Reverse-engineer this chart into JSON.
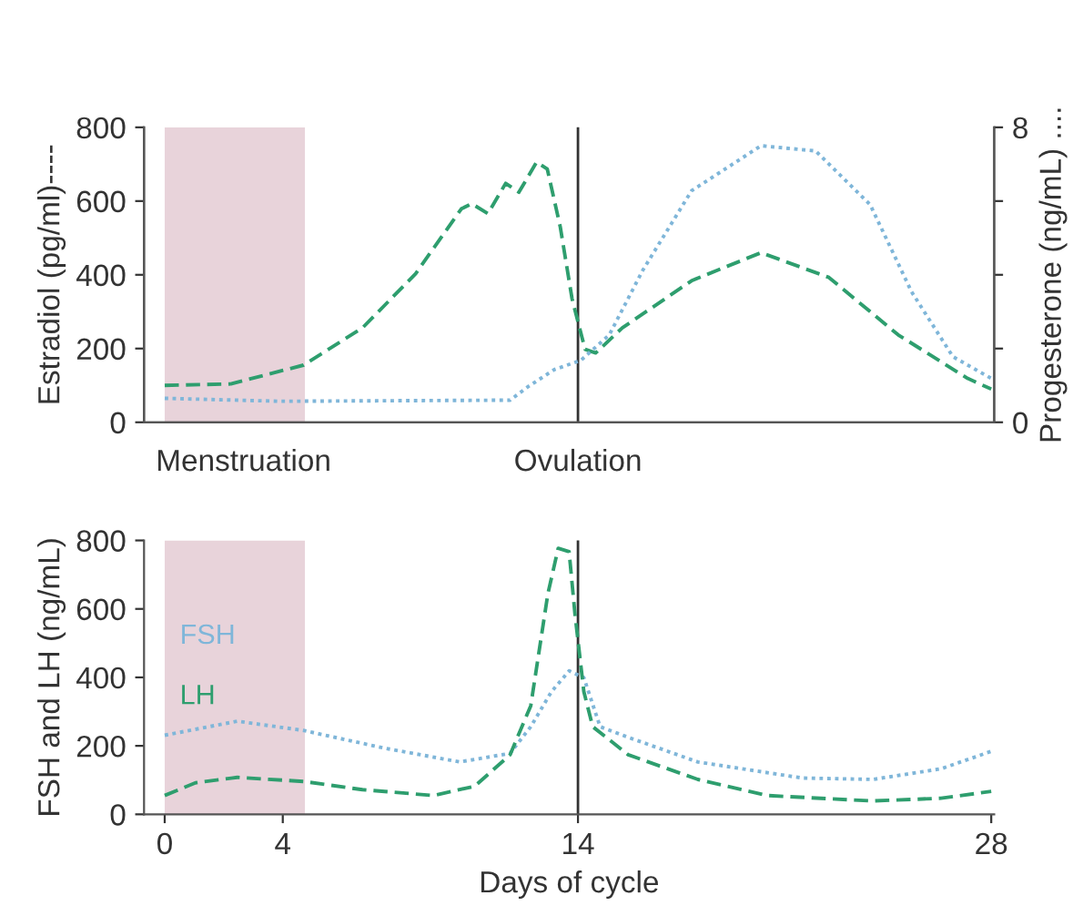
{
  "chart_data": [
    {
      "type": "line",
      "ylabel": "Estradiol (pg/ml)----",
      "y2label": "Progesterone (ng/mL) ....",
      "xlim": [
        -0.7,
        28.1
      ],
      "xticks": [
        0,
        4,
        14,
        28
      ],
      "ylim": [
        0,
        800
      ],
      "yticks": [
        0,
        200,
        400,
        600,
        800
      ],
      "y2lim": [
        0,
        8
      ],
      "y2ticks": [
        0,
        {
          "value": 2,
          "label": null
        },
        {
          "value": 4,
          "label": null
        },
        {
          "value": 6,
          "label": null
        },
        8
      ],
      "tick_labels": "y",
      "grid": false,
      "legend": false,
      "series": [
        {
          "color": "#2e9e6e",
          "line_style": "dashed",
          "x": [
            0,
            2.24,
            4.7,
            6.7,
            8.5,
            10.05,
            10.4,
            10.95,
            11.55,
            12.0,
            12.6,
            12.96,
            13.4,
            13.8,
            14.24,
            14.6,
            15.5,
            17.85,
            20.2,
            22.5,
            24.85,
            27.2,
            28
          ],
          "values": [
            100,
            104,
            155,
            256,
            403,
            579,
            593,
            566,
            648,
            624,
            706,
            687,
            530,
            335,
            198,
            188,
            256,
            384,
            460,
            393,
            237,
            119,
            90
          ]
        },
        {
          "color": "#7fb6d9",
          "line_style": "dotted",
          "axis": "y2",
          "x": [
            0,
            3.9,
            11.7,
            12.3,
            13.2,
            14.1,
            15.06,
            16.2,
            17.85,
            20.2,
            22.05,
            23.9,
            25.3,
            26.7,
            28
          ],
          "values": [
            0.65,
            0.57,
            0.6,
            0.96,
            1.43,
            1.68,
            2.37,
            4.13,
            6.28,
            7.5,
            7.36,
            5.9,
            3.54,
            1.78,
            1.19
          ]
        }
      ],
      "bands": [
        {
          "axis": "x",
          "from": 0,
          "to": 4.75,
          "label": "Menstruation",
          "color": "#e8d3da"
        }
      ],
      "ref_lines": [
        {
          "axis": "x",
          "value": 14,
          "label": "Ovulation",
          "color": "#333333"
        }
      ]
    },
    {
      "type": "line",
      "xlabel": "Days of cycle",
      "ylabel": "FSH and LH (ng/mL)",
      "xlim": [
        -0.7,
        28.1
      ],
      "xticks": [
        0,
        4,
        14,
        28
      ],
      "ylim": [
        0,
        800
      ],
      "yticks": [
        0,
        200,
        400,
        600,
        800
      ],
      "grid": false,
      "legend": false,
      "series": [
        {
          "name": "FSH",
          "color": "#7fb6d9",
          "line_style": "dotted",
          "x": [
            0,
            2.46,
            4.7,
            7.4,
            10.0,
            11.7,
            12.4,
            13.1,
            13.7,
            14.2,
            14.75,
            15.7,
            18.06,
            21.6,
            24,
            26.3,
            28
          ],
          "values": [
            231,
            272,
            245,
            194,
            153,
            178,
            256,
            358,
            419,
            399,
            256,
            225,
            153,
            106,
            102,
            133,
            184
          ]
        },
        {
          "name": "LH",
          "color": "#2e9e6e",
          "line_style": "dashed",
          "x": [
            0,
            1.04,
            2.46,
            4.7,
            6.7,
            9.1,
            10.5,
            11.7,
            12.4,
            12.98,
            13.33,
            13.7,
            13.9,
            14.2,
            14.5,
            15.7,
            18.06,
            20.4,
            23.97,
            26.3,
            28
          ],
          "values": [
            55,
            92,
            108,
            96,
            72,
            55,
            82,
            174,
            317,
            644,
            777,
            767,
            583,
            358,
            256,
            174,
            102,
            55,
            39,
            47,
            67
          ]
        }
      ],
      "bands": [
        {
          "axis": "x",
          "from": 0,
          "to": 4.75,
          "color": "#e8d3da"
        }
      ],
      "ref_lines": [
        {
          "axis": "x",
          "value": 14,
          "color": "#333333"
        }
      ]
    }
  ]
}
